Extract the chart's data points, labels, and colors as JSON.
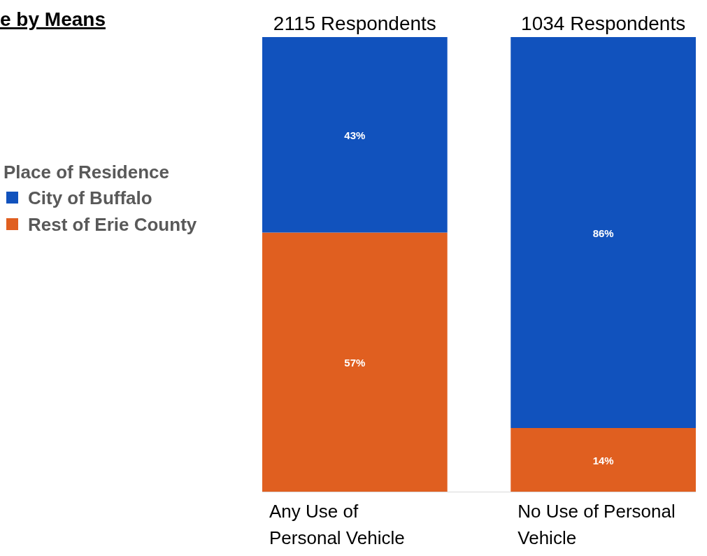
{
  "chart_data": {
    "type": "bar",
    "title": "e by Means",
    "stacked": true,
    "legend": "left",
    "legend_title": "Place of Residence",
    "categories": [
      "Any Use of Personal Vehicle",
      "No Use of Personal Vehicle"
    ],
    "series": [
      {
        "name": "Rest of Erie County",
        "color": "#e05f20",
        "values": [
          57,
          14
        ],
        "value_labels": [
          "57%",
          "14%"
        ]
      },
      {
        "name": "City of Buffalo",
        "color": "#1152bd",
        "values": [
          43,
          86
        ],
        "value_labels": [
          "43%",
          "86%"
        ]
      }
    ],
    "annotations": [
      {
        "text": "2115 Respondents",
        "x": "Any Use of Personal Vehicle",
        "y": 100
      },
      {
        "text": "1034 Respondents",
        "x": "No Use of Personal Vehicle",
        "y": 100
      }
    ]
  }
}
